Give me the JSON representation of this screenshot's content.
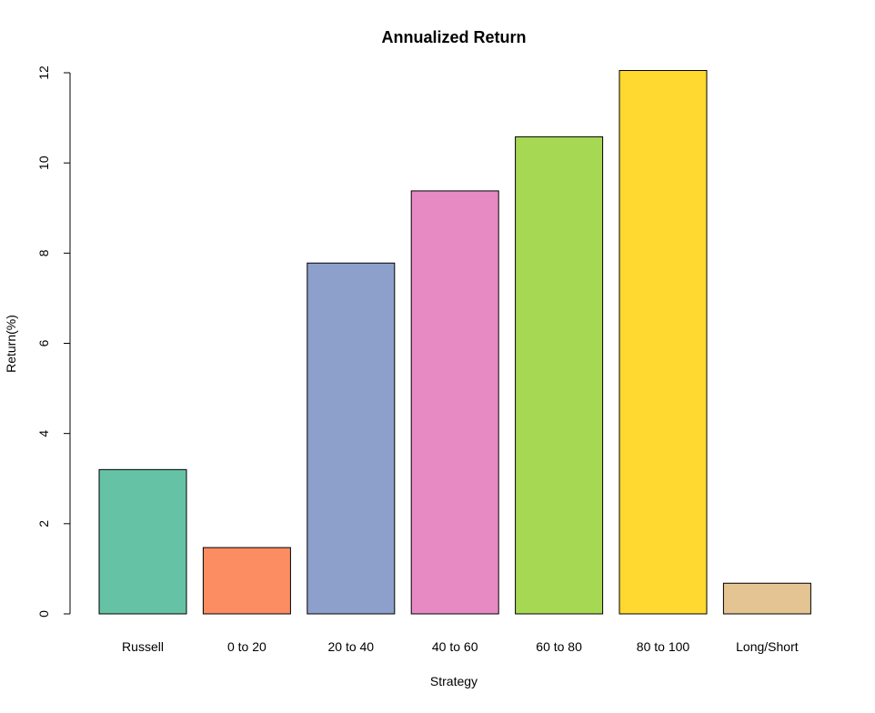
{
  "chart_data": {
    "type": "bar",
    "title": "Annualized Return",
    "xlabel": "Strategy",
    "ylabel": "Return(%)",
    "categories": [
      "Russell",
      "0 to 20",
      "20 to 40",
      "40 to 60",
      "60 to 80",
      "80 to 100",
      "Long/Short"
    ],
    "values": [
      3.2,
      1.47,
      7.78,
      9.38,
      10.58,
      12.05,
      0.68
    ],
    "colors": [
      "#66C2A5",
      "#FC8D62",
      "#8DA0CB",
      "#E78AC3",
      "#A6D854",
      "#FFD92F",
      "#E5C494"
    ],
    "ylim": [
      0,
      12
    ],
    "yticks": [
      0,
      2,
      4,
      6,
      8,
      10,
      12
    ],
    "grid": false,
    "legend": "none"
  }
}
